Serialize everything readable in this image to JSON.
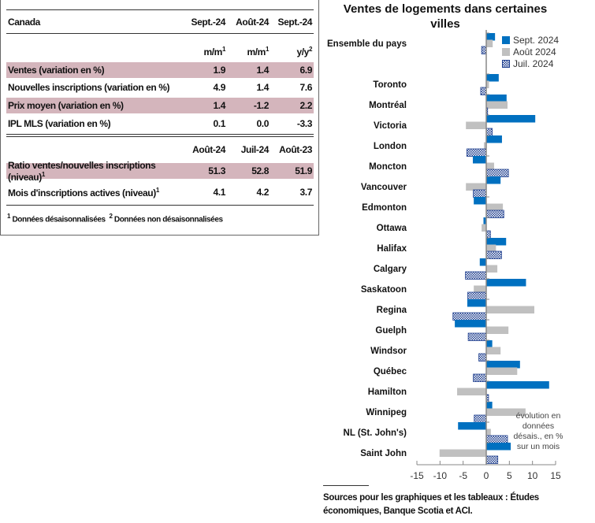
{
  "table": {
    "title": "Canada",
    "head1": [
      "Sept.-24",
      "Août-24",
      "Sept.-24"
    ],
    "units": [
      "m/m",
      "m/m",
      "y/y"
    ],
    "units_sup": [
      "1",
      "1",
      "2"
    ],
    "rows1": [
      {
        "label": "Ventes (variation en %)",
        "values": [
          "1.9",
          "1.4",
          "6.9"
        ]
      },
      {
        "label": "Nouvelles inscriptions (variation en %)",
        "values": [
          "4.9",
          "1.4",
          "7.6"
        ]
      },
      {
        "label": "Prix moyen (variation en %)",
        "values": [
          "1.4",
          "-1.2",
          "2.2"
        ]
      },
      {
        "label": "IPL MLS (variation en %)",
        "values": [
          "0.1",
          "0.0",
          "-3.3"
        ]
      }
    ],
    "head2": [
      "Août-24",
      "Juil-24",
      "Août-23"
    ],
    "rows2": [
      {
        "label": "Ratio ventes/nouvelles inscriptions (niveau)",
        "sup": "1",
        "values": [
          "51.3",
          "52.8",
          "51.9"
        ]
      },
      {
        "label": "Mois d'inscriptions actives (niveau)",
        "sup": "1",
        "values": [
          "4.1",
          "4.2",
          "3.7"
        ]
      }
    ],
    "foot_sup1": "1",
    "foot1": "Données désaisonnalisées",
    "foot_sup2": "2",
    "foot2": "Données non désaisonnalisées"
  },
  "chart_data": {
    "type": "bar",
    "orientation": "horizontal",
    "title": "Ventes de logements dans certaines villes",
    "categories": [
      "Ensemble du pays",
      "Toronto",
      "Montréal",
      "Victoria",
      "London",
      "Moncton",
      "Vancouver",
      "Edmonton",
      "Ottawa",
      "Halifax",
      "Calgary",
      "Saskatoon",
      "Regina",
      "Guelph",
      "Windsor",
      "Québec",
      "Hamilton",
      "Winnipeg",
      "NL (St. John's)",
      "Saint John"
    ],
    "series": [
      {
        "name": "Sept. 2024",
        "color": "#0070c0",
        "values": [
          1.9,
          2.7,
          4.4,
          10.6,
          3.4,
          -2.9,
          3.1,
          -2.7,
          -0.6,
          4.3,
          -1.4,
          8.6,
          -4.1,
          -6.8,
          1.3,
          7.3,
          13.6,
          1.3,
          -6.1,
          5.3
        ]
      },
      {
        "name": "Août 2024",
        "color": "#c0c0c0",
        "values": [
          1.4,
          0.6,
          4.6,
          -4.4,
          -0.5,
          1.7,
          -4.4,
          3.6,
          -1.0,
          2.1,
          2.4,
          -2.7,
          10.4,
          4.8,
          3.1,
          6.7,
          -6.3,
          8.5,
          1.0,
          -10.1
        ]
      },
      {
        "name": "Juil. 2024",
        "color": "#1f3f8f",
        "pattern": "checker",
        "values": [
          -1.0,
          -1.2,
          0.3,
          1.3,
          -4.2,
          4.8,
          -2.8,
          3.8,
          0.9,
          3.3,
          -4.5,
          -4.0,
          -7.2,
          -3.9,
          -1.6,
          -2.8,
          0.5,
          -2.6,
          4.6,
          2.5
        ]
      }
    ],
    "xlim": [
      -15,
      15
    ],
    "xticks": [
      "-15",
      "-10",
      "-5",
      "0",
      "5",
      "10",
      "15"
    ],
    "legend": "top-right",
    "annotation": "évolution en données désais., en % sur un mois"
  },
  "source": "Sources pour les graphiques et les tableaux : Études économiques, Banque Scotia et ACI."
}
